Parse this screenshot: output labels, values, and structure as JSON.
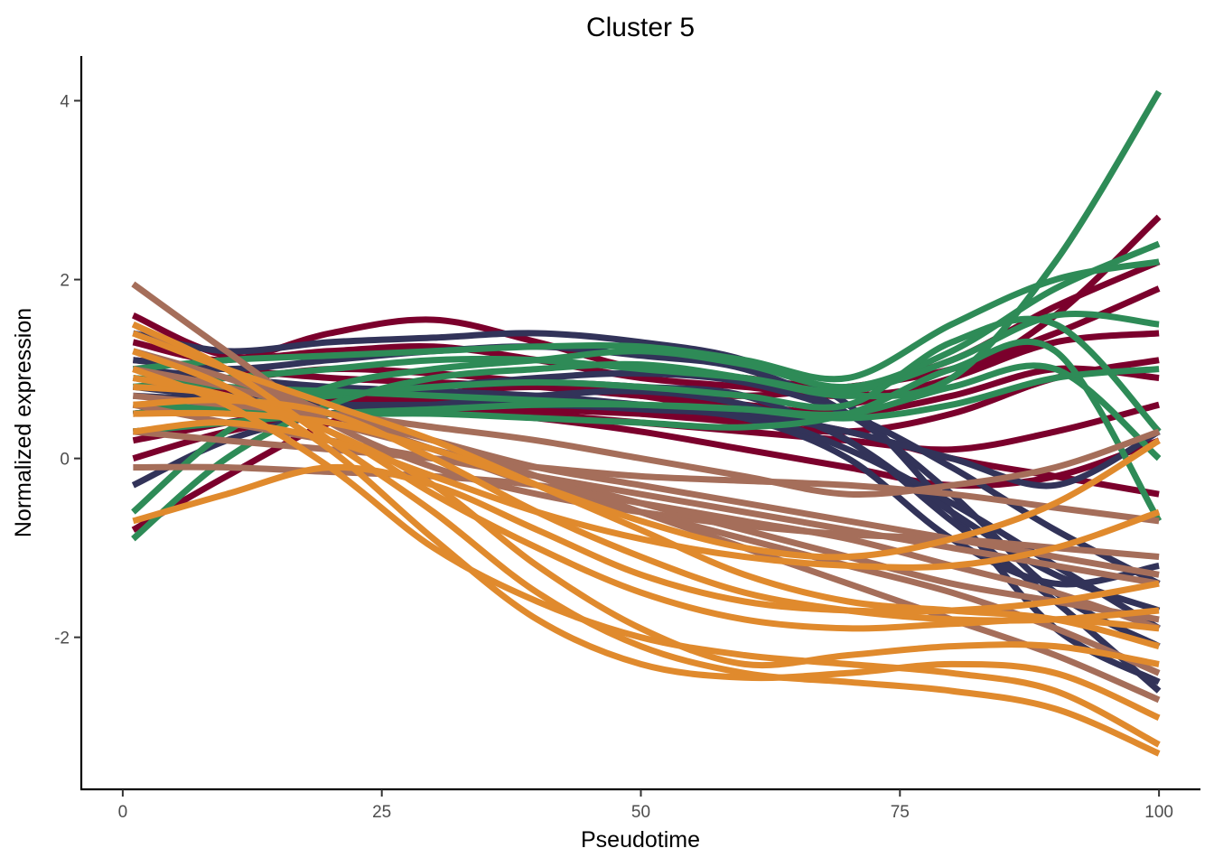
{
  "chart_data": {
    "type": "line",
    "title": "Cluster 5",
    "xlabel": "Pseudotime",
    "ylabel": "Normalized expression",
    "xlim": [
      -4,
      104
    ],
    "ylim": [
      -3.7,
      4.5
    ],
    "xticks": [
      0,
      25,
      50,
      75,
      100
    ],
    "xtick_labels": [
      "0",
      "25",
      "50",
      "75",
      "100"
    ],
    "yticks": [
      -2,
      0,
      2,
      4
    ],
    "ytick_labels": [
      "-2",
      "0",
      "2",
      "4"
    ],
    "grid": false,
    "legend": "none",
    "colors": [
      "#7B002C",
      "#323359",
      "#2E8B57",
      "#A56E5A",
      "#E08A2D"
    ],
    "x": [
      1,
      10,
      20,
      30,
      40,
      50,
      60,
      70,
      80,
      90,
      100
    ],
    "series": [
      {
        "color": "#7B002C",
        "values": [
          1.6,
          1.15,
          1.2,
          1.25,
          1.1,
          0.9,
          0.8,
          0.7,
          0.9,
          1.6,
          2.7
        ]
      },
      {
        "color": "#7B002C",
        "values": [
          1.3,
          1.1,
          1.4,
          1.55,
          1.3,
          1.0,
          0.9,
          0.8,
          1.1,
          1.7,
          2.2
        ]
      },
      {
        "color": "#7B002C",
        "values": [
          1.0,
          0.9,
          1.0,
          0.95,
          0.85,
          0.75,
          0.7,
          0.8,
          1.0,
          1.4,
          1.9
        ]
      },
      {
        "color": "#7B002C",
        "values": [
          0.2,
          0.4,
          0.6,
          0.6,
          0.55,
          0.5,
          0.45,
          0.6,
          0.9,
          1.3,
          1.4
        ]
      },
      {
        "color": "#7B002C",
        "values": [
          0.8,
          0.75,
          0.7,
          0.65,
          0.6,
          0.5,
          0.4,
          0.3,
          0.5,
          0.9,
          1.1
        ]
      },
      {
        "color": "#7B002C",
        "values": [
          0.5,
          0.6,
          0.65,
          0.6,
          0.5,
          0.4,
          0.3,
          0.2,
          0.1,
          0.3,
          0.6
        ]
      },
      {
        "color": "#7B002C",
        "values": [
          0.0,
          0.3,
          0.5,
          0.55,
          0.45,
          0.3,
          0.1,
          -0.1,
          -0.3,
          -0.2,
          0.2
        ]
      },
      {
        "color": "#7B002C",
        "values": [
          -0.8,
          -0.2,
          0.4,
          0.7,
          0.8,
          0.7,
          0.5,
          0.3,
          0.0,
          -0.2,
          -0.4
        ]
      },
      {
        "color": "#7B002C",
        "values": [
          1.1,
          1.0,
          0.9,
          0.85,
          0.8,
          0.7,
          0.6,
          0.5,
          0.7,
          1.0,
          0.9
        ]
      },
      {
        "color": "#323359",
        "values": [
          1.4,
          1.2,
          1.3,
          1.35,
          1.4,
          1.3,
          1.1,
          0.6,
          -0.6,
          -1.9,
          -2.5
        ]
      },
      {
        "color": "#323359",
        "values": [
          1.1,
          1.0,
          1.1,
          1.2,
          1.25,
          1.15,
          1.0,
          0.5,
          -0.4,
          -1.5,
          -2.1
        ]
      },
      {
        "color": "#323359",
        "values": [
          0.8,
          0.7,
          0.75,
          0.8,
          0.85,
          0.8,
          0.7,
          0.2,
          -0.6,
          -1.3,
          -1.7
        ]
      },
      {
        "color": "#323359",
        "values": [
          0.5,
          0.6,
          0.7,
          0.8,
          0.9,
          0.95,
          0.85,
          0.5,
          -0.1,
          -0.8,
          -1.4
        ]
      },
      {
        "color": "#323359",
        "values": [
          -0.3,
          0.2,
          0.5,
          0.6,
          0.65,
          0.6,
          0.5,
          0.1,
          -0.5,
          -1.2,
          -1.9
        ]
      },
      {
        "color": "#323359",
        "values": [
          0.3,
          0.4,
          0.5,
          0.6,
          0.7,
          0.75,
          0.6,
          0.2,
          -0.7,
          -1.6,
          -2.6
        ]
      },
      {
        "color": "#323359",
        "values": [
          1.0,
          0.9,
          0.8,
          0.75,
          0.7,
          0.6,
          0.5,
          0.3,
          0.0,
          -0.3,
          0.3
        ]
      },
      {
        "color": "#323359",
        "values": [
          0.7,
          0.65,
          0.6,
          0.6,
          0.6,
          0.55,
          0.45,
          0.0,
          -0.9,
          -1.4,
          -1.2
        ]
      },
      {
        "color": "#2E8B57",
        "values": [
          -0.9,
          0.0,
          0.6,
          0.9,
          1.0,
          1.05,
          0.9,
          0.7,
          0.9,
          2.2,
          4.1
        ]
      },
      {
        "color": "#2E8B57",
        "values": [
          -0.6,
          0.3,
          0.8,
          1.0,
          1.1,
          1.2,
          1.05,
          0.8,
          1.2,
          1.9,
          2.4
        ]
      },
      {
        "color": "#2E8B57",
        "values": [
          1.0,
          1.1,
          1.15,
          1.2,
          1.25,
          1.25,
          1.1,
          0.9,
          1.5,
          2.0,
          2.2
        ]
      },
      {
        "color": "#2E8B57",
        "values": [
          0.8,
          0.9,
          1.0,
          1.1,
          1.1,
          1.0,
          0.9,
          0.75,
          1.1,
          1.6,
          1.5
        ]
      },
      {
        "color": "#2E8B57",
        "values": [
          0.5,
          0.6,
          0.7,
          0.8,
          0.85,
          0.8,
          0.7,
          0.6,
          1.3,
          1.5,
          0.3
        ]
      },
      {
        "color": "#2E8B57",
        "values": [
          0.6,
          0.55,
          0.5,
          0.5,
          0.45,
          0.4,
          0.35,
          0.5,
          1.0,
          1.2,
          -0.7
        ]
      },
      {
        "color": "#2E8B57",
        "values": [
          0.9,
          0.8,
          0.75,
          0.7,
          0.65,
          0.6,
          0.55,
          0.5,
          0.8,
          1.0,
          0.0
        ]
      },
      {
        "color": "#2E8B57",
        "values": [
          0.3,
          0.4,
          0.5,
          0.55,
          0.6,
          0.6,
          0.55,
          0.45,
          0.6,
          0.9,
          1.0
        ]
      },
      {
        "color": "#A56E5A",
        "values": [
          1.95,
          1.2,
          0.4,
          -0.1,
          -0.4,
          -0.6,
          -0.75,
          -0.85,
          -0.9,
          -1.0,
          -1.1
        ]
      },
      {
        "color": "#A56E5A",
        "values": [
          1.5,
          1.0,
          0.5,
          0.1,
          -0.3,
          -0.6,
          -0.9,
          -1.2,
          -1.5,
          -1.9,
          -2.4
        ]
      },
      {
        "color": "#A56E5A",
        "values": [
          1.2,
          0.9,
          0.5,
          0.2,
          -0.1,
          -0.3,
          -0.5,
          -0.7,
          -0.9,
          -1.1,
          -1.3
        ]
      },
      {
        "color": "#A56E5A",
        "values": [
          0.9,
          0.7,
          0.4,
          0.1,
          -0.2,
          -0.5,
          -0.8,
          -1.1,
          -1.4,
          -1.6,
          -1.8
        ]
      },
      {
        "color": "#A56E5A",
        "values": [
          0.6,
          0.4,
          0.2,
          0.0,
          -0.2,
          -0.4,
          -0.6,
          -0.8,
          -1.0,
          -1.2,
          -1.4
        ]
      },
      {
        "color": "#A56E5A",
        "values": [
          0.3,
          0.2,
          0.1,
          0.0,
          -0.1,
          -0.2,
          -0.25,
          -0.3,
          -0.4,
          -0.55,
          -0.7
        ]
      },
      {
        "color": "#A56E5A",
        "values": [
          -0.1,
          -0.1,
          -0.15,
          -0.2,
          -0.3,
          -0.5,
          -0.7,
          -0.9,
          -1.2,
          -1.5,
          -1.9
        ]
      },
      {
        "color": "#A56E5A",
        "values": [
          1.0,
          0.8,
          0.5,
          0.2,
          -0.2,
          -0.6,
          -1.0,
          -1.4,
          -1.8,
          -2.2,
          -2.7
        ]
      },
      {
        "color": "#A56E5A",
        "values": [
          0.7,
          0.6,
          0.5,
          0.35,
          0.2,
          0.0,
          -0.2,
          -0.4,
          -0.3,
          -0.1,
          0.3
        ]
      },
      {
        "color": "#E08A2D",
        "values": [
          1.5,
          1.0,
          0.2,
          -0.6,
          -1.5,
          -2.1,
          -2.4,
          -2.5,
          -2.6,
          -2.8,
          -3.3
        ]
      },
      {
        "color": "#E08A2D",
        "values": [
          1.2,
          0.8,
          0.1,
          -0.9,
          -1.8,
          -2.3,
          -2.45,
          -2.4,
          -2.3,
          -2.4,
          -2.9
        ]
      },
      {
        "color": "#E08A2D",
        "values": [
          1.0,
          0.6,
          -0.1,
          -1.0,
          -1.6,
          -2.0,
          -2.2,
          -2.3,
          -2.4,
          -2.6,
          -3.2
        ]
      },
      {
        "color": "#E08A2D",
        "values": [
          0.8,
          0.7,
          0.3,
          -0.4,
          -1.0,
          -1.5,
          -1.8,
          -1.9,
          -1.85,
          -1.8,
          -1.9
        ]
      },
      {
        "color": "#E08A2D",
        "values": [
          0.6,
          0.65,
          0.5,
          0.0,
          -0.6,
          -1.1,
          -1.5,
          -1.7,
          -1.8,
          -1.8,
          -1.7
        ]
      },
      {
        "color": "#E08A2D",
        "values": [
          -0.7,
          -0.4,
          -0.1,
          -0.3,
          -0.8,
          -1.3,
          -1.6,
          -1.7,
          -1.7,
          -1.6,
          -1.4
        ]
      },
      {
        "color": "#E08A2D",
        "values": [
          0.3,
          0.4,
          0.2,
          -0.2,
          -0.6,
          -0.9,
          -1.1,
          -1.2,
          -1.2,
          -1.0,
          -0.6
        ]
      },
      {
        "color": "#E08A2D",
        "values": [
          1.4,
          1.0,
          0.6,
          0.2,
          -0.3,
          -0.8,
          -1.3,
          -1.6,
          -1.7,
          -1.8,
          -2.1
        ]
      },
      {
        "color": "#E08A2D",
        "values": [
          0.5,
          0.5,
          0.4,
          0.1,
          -0.3,
          -0.7,
          -1.0,
          -1.1,
          -0.9,
          -0.5,
          0.2
        ]
      },
      {
        "color": "#E08A2D",
        "values": [
          0.9,
          0.7,
          0.3,
          -0.3,
          -1.2,
          -1.9,
          -2.3,
          -2.2,
          -2.1,
          -2.1,
          -2.3
        ]
      }
    ]
  }
}
